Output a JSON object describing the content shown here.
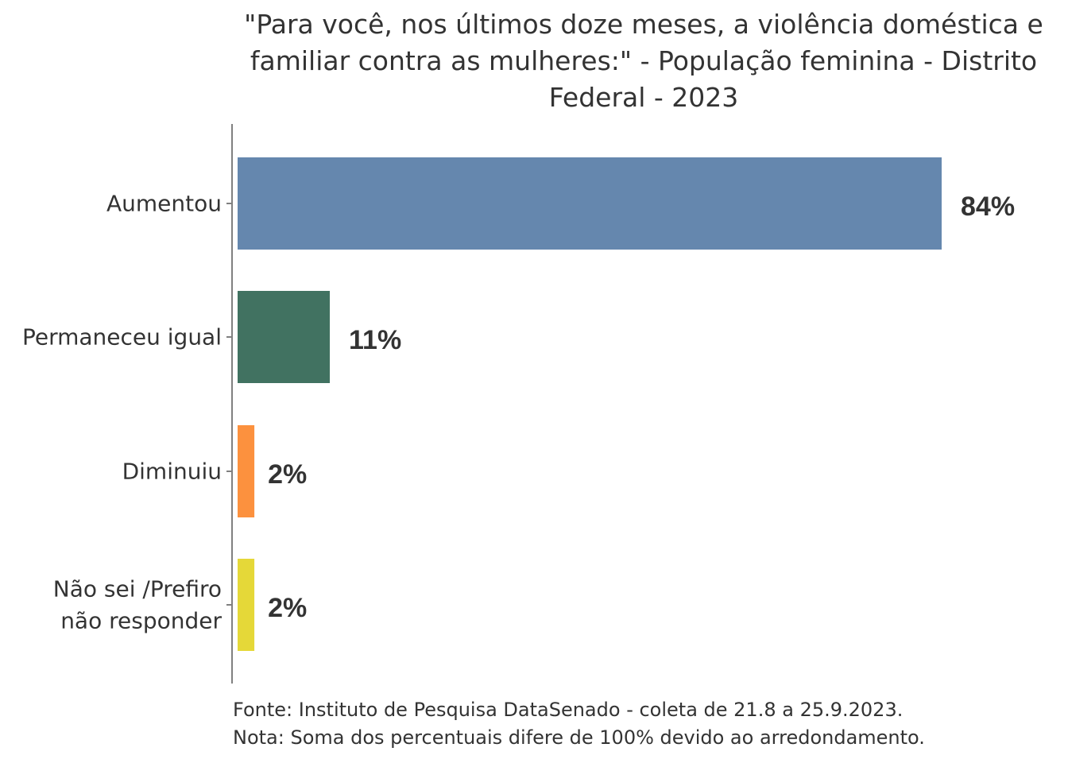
{
  "chart_data": {
    "type": "bar",
    "orientation": "horizontal",
    "title": "\"Para você, nos últimos doze meses, a violência doméstica e familiar contra as mulheres:\" - População feminina - Distrito Federal - 2023",
    "categories": [
      [
        "Aumentou"
      ],
      [
        "Permaneceu igual"
      ],
      [
        "Diminuiu"
      ],
      [
        "Não sei /Prefiro",
        "não responder"
      ]
    ],
    "values": [
      84,
      11,
      2,
      2
    ],
    "value_labels": [
      "84%",
      "11%",
      "2%",
      "2%"
    ],
    "colors": [
      "#6587ae",
      "#417261",
      "#fc913e",
      "#e5d838"
    ],
    "xlim": [
      0,
      100
    ],
    "xlabel": "",
    "ylabel": "",
    "grid": false,
    "legend": "none"
  },
  "notes": {
    "source": "Fonte: Instituto de Pesquisa DataSenado - coleta de 21.8 a 25.9.2023.",
    "note": "Nota: Soma dos percentuais difere de 100% devido ao arredondamento."
  }
}
